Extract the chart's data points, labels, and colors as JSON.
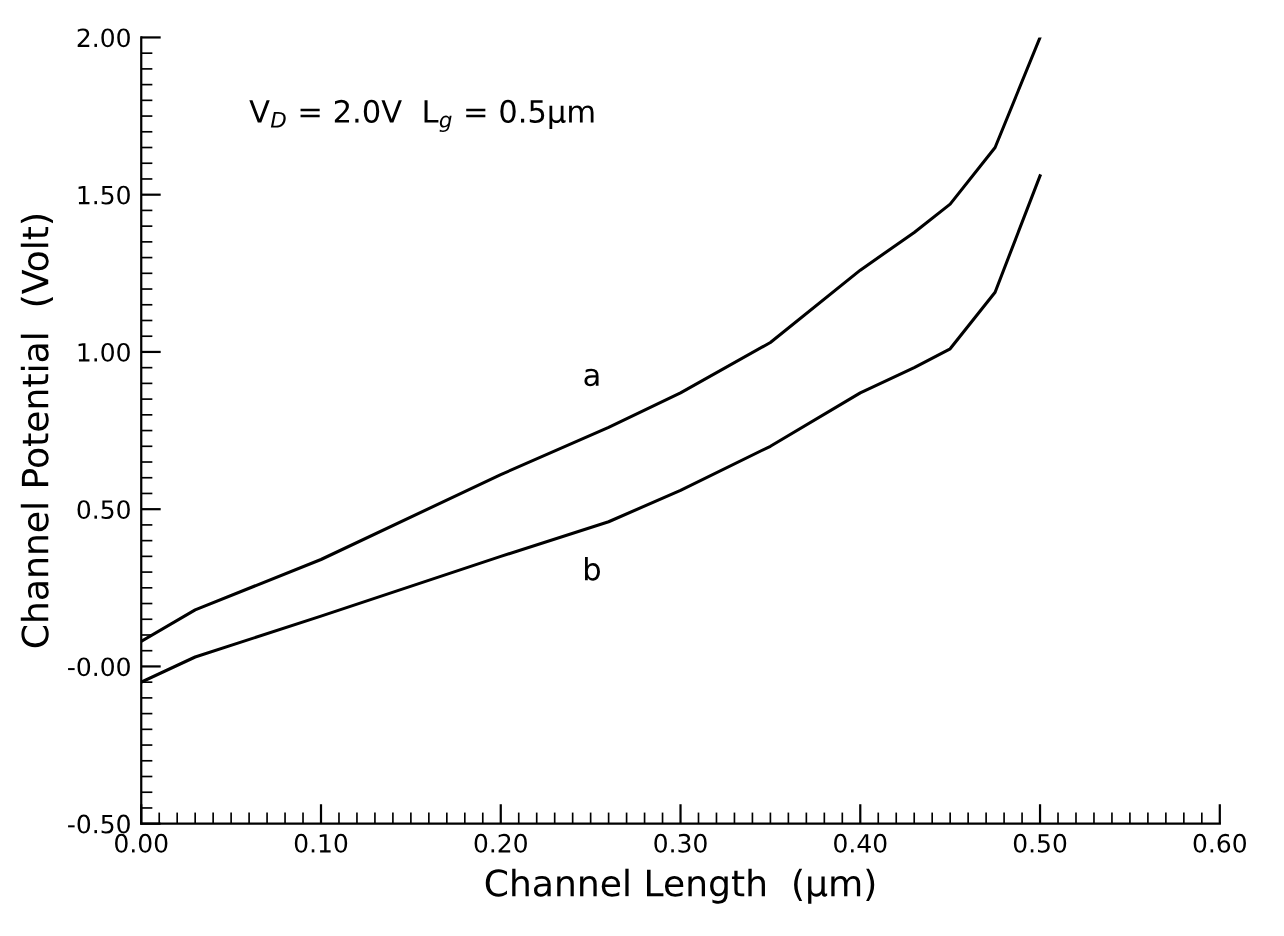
{
  "chart_data": {
    "type": "line",
    "xlabel": "Channel Length  (μm)",
    "ylabel": "Channel Potential  (Volt)",
    "xlim": [
      0,
      0.6
    ],
    "ylim": [
      -0.5,
      2.0
    ],
    "xticks": [
      {
        "value": 0,
        "label": "0.00"
      },
      {
        "value": 0.1,
        "label": "0.10"
      },
      {
        "value": 0.2,
        "label": "0.20"
      },
      {
        "value": 0.3,
        "label": "0.30"
      },
      {
        "value": 0.4,
        "label": "0.40"
      },
      {
        "value": 0.5,
        "label": "0.50"
      },
      {
        "value": 0.6,
        "label": "0.60"
      }
    ],
    "yticks": [
      {
        "value": -0.5,
        "label": "-0.50"
      },
      {
        "value": 0,
        "label": "-0.00"
      },
      {
        "value": 0.5,
        "label": "0.50"
      },
      {
        "value": 1.0,
        "label": "1.00"
      },
      {
        "value": 1.5,
        "label": "1.50"
      },
      {
        "value": 2.0,
        "label": "2.00"
      }
    ],
    "grid": false,
    "legend": false,
    "marker": "none",
    "line_style": "solid",
    "series": [
      {
        "name": "a",
        "color": "#000000",
        "x": [
          0,
          0.03,
          0.1,
          0.2,
          0.26,
          0.3,
          0.35,
          0.4,
          0.43,
          0.45,
          0.475,
          0.5
        ],
        "values": [
          0.08,
          0.18,
          0.34,
          0.61,
          0.76,
          0.87,
          1.03,
          1.26,
          1.38,
          1.47,
          1.65,
          2.0
        ]
      },
      {
        "name": "b",
        "color": "#000000",
        "x": [
          0,
          0.03,
          0.1,
          0.2,
          0.26,
          0.3,
          0.35,
          0.4,
          0.43,
          0.45,
          0.475,
          0.5
        ],
        "values": [
          -0.05,
          0.03,
          0.16,
          0.35,
          0.46,
          0.56,
          0.7,
          0.87,
          0.95,
          1.01,
          1.19,
          1.56
        ]
      }
    ],
    "annotations": [
      "V$_{D}$ = 2.0V  L$_{g}$ = 0.5μm"
    ]
  }
}
